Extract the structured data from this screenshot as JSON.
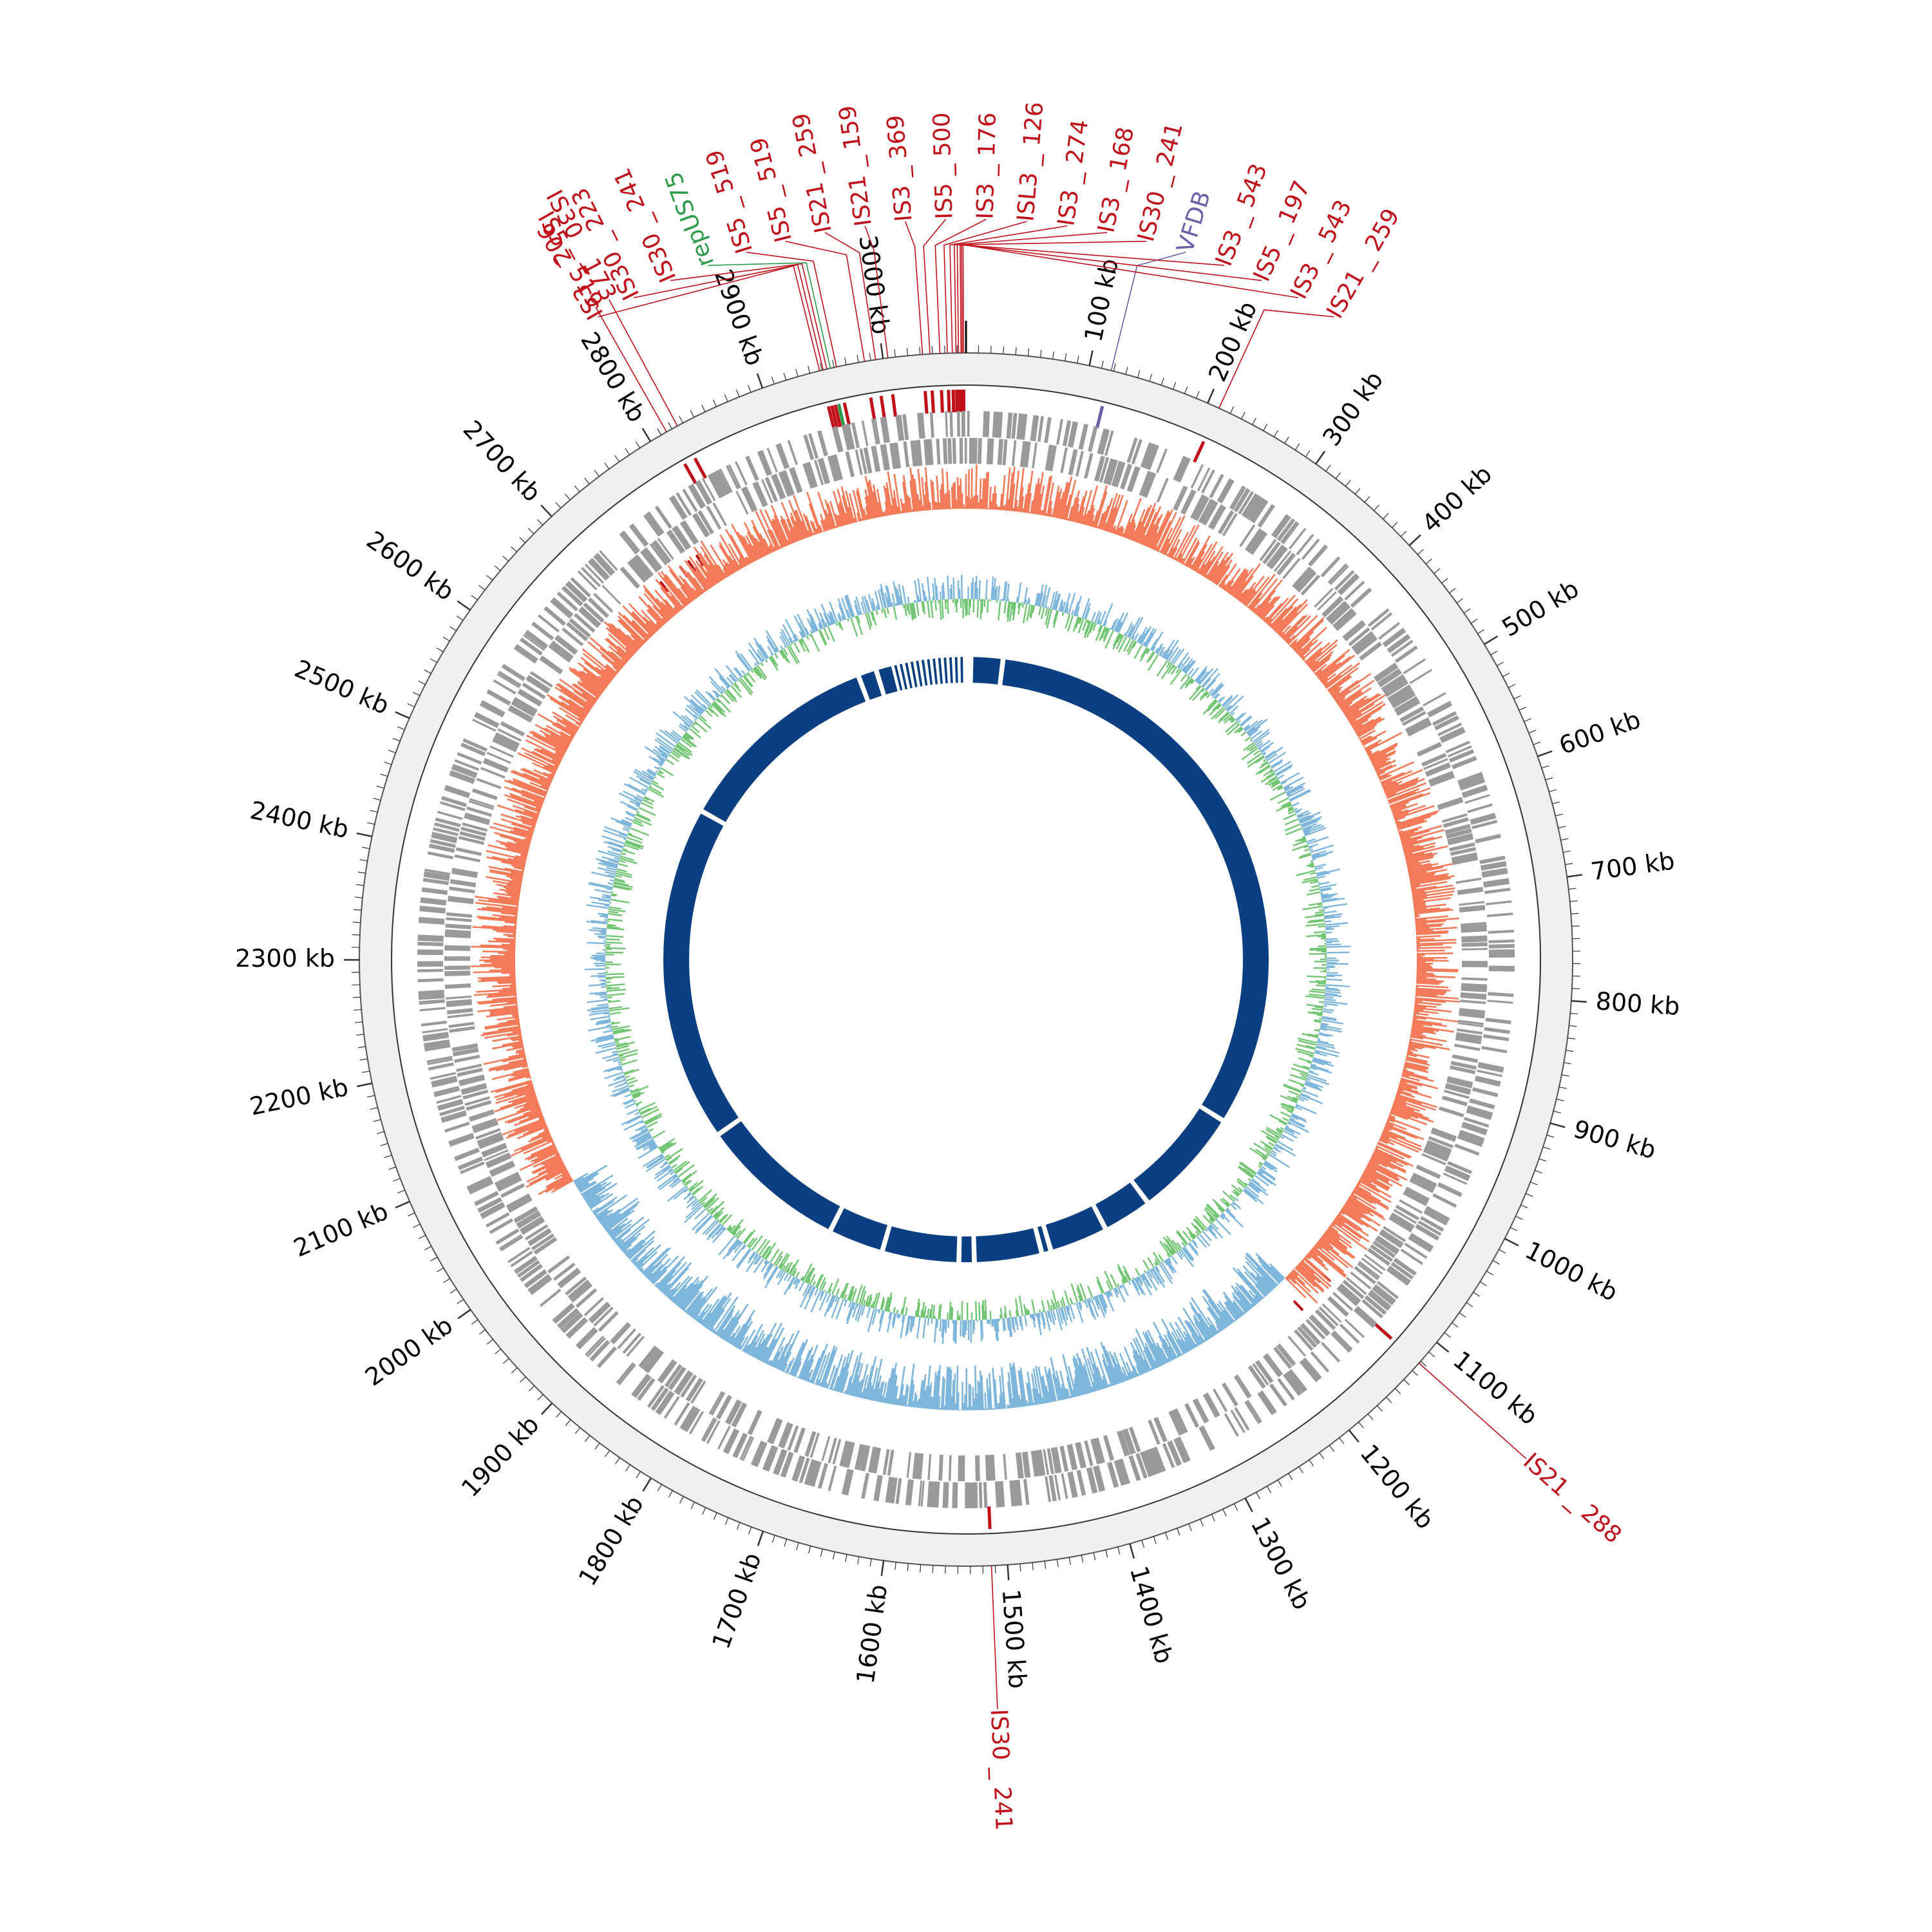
{
  "chart_data": {
    "type": "circular-genome-map",
    "genome_length_kb": 3067,
    "tick_unit": "kb",
    "tick_labels": [
      "100 kb",
      "200 kb",
      "300 kb",
      "400 kb",
      "500 kb",
      "600 kb",
      "700 kb",
      "800 kb",
      "900 kb",
      "1000 kb",
      "1100 kb",
      "1200 kb",
      "1300 kb",
      "1400 kb",
      "1500 kb",
      "1600 kb",
      "1700 kb",
      "1800 kb",
      "1900 kb",
      "2000 kb",
      "2100 kb",
      "2200 kb",
      "2300 kb",
      "2400 kb",
      "2500 kb",
      "2600 kb",
      "2700 kb",
      "2800 kb",
      "2900 kb",
      "3000 kb"
    ],
    "tick_positions_kb": [
      100,
      200,
      300,
      400,
      500,
      600,
      700,
      800,
      900,
      1000,
      1100,
      1200,
      1300,
      1400,
      1500,
      1600,
      1700,
      1800,
      1900,
      2000,
      2100,
      2200,
      2300,
      2400,
      2500,
      2600,
      2700,
      2800,
      2900,
      3000
    ],
    "feature_labels": [
      {
        "label": "IS5 _ 519",
        "kb": 2815,
        "color": "#c0101a"
      },
      {
        "label": "IS30 _ 173",
        "kb": 2825,
        "color": "#c0101a"
      },
      {
        "label": "IS3 _ 206",
        "kb": 2948,
        "color": "#c0101a"
      },
      {
        "label": "IS30 _ 223",
        "kb": 2951,
        "color": "#c0101a"
      },
      {
        "label": "IS30 _ 241",
        "kb": 2954,
        "color": "#c0101a"
      },
      {
        "label": "repUS75",
        "kb": 2957,
        "color": "#2e9b4a"
      },
      {
        "label": "IS5 _ 519",
        "kb": 2962,
        "color": "#c0101a"
      },
      {
        "label": "IS5 _ 519",
        "kb": 2985,
        "color": "#c0101a"
      },
      {
        "label": "IS21 _ 259",
        "kb": 2994,
        "color": "#c0101a"
      },
      {
        "label": "IS21 _ 159",
        "kb": 3004,
        "color": "#c0101a"
      },
      {
        "label": "IS3 _ 369",
        "kb": 3032,
        "color": "#c0101a"
      },
      {
        "label": "IS5 _ 500",
        "kb": 3038,
        "color": "#c0101a"
      },
      {
        "label": "IS3 _ 176",
        "kb": 3046,
        "color": "#c0101a"
      },
      {
        "label": "ISL3 _ 126",
        "kb": 3052,
        "color": "#c0101a"
      },
      {
        "label": "IS3 _ 274",
        "kb": 3056,
        "color": "#c0101a"
      },
      {
        "label": "IS3 _ 168",
        "kb": 3059,
        "color": "#c0101a"
      },
      {
        "label": "IS30 _ 241",
        "kb": 3061,
        "color": "#c0101a"
      },
      {
        "label": "VFDB",
        "kb": 118,
        "color": "#6a5ea8"
      },
      {
        "label": "IS3 _ 543",
        "kb": 3063,
        "color": "#c0101a"
      },
      {
        "label": "IS5 _ 197",
        "kb": 3064,
        "color": "#c0101a"
      },
      {
        "label": "IS3 _ 543",
        "kb": 3065,
        "color": "#c0101a"
      },
      {
        "label": "IS21 _ 259",
        "kb": 210,
        "color": "#c0101a"
      },
      {
        "label": "IS21 _ 288",
        "kb": 1122,
        "color": "#c0101a"
      },
      {
        "label": "IS30 _ 241",
        "kb": 1513,
        "color": "#c0101a"
      }
    ],
    "tracks": [
      {
        "name": "mobile elements",
        "color": "#c0101a"
      },
      {
        "name": "CDS forward/reverse",
        "color": "#9a9a9a"
      },
      {
        "name": "GC skew positive",
        "color": "#f47b5a"
      },
      {
        "name": "GC skew negative",
        "color": "#7fb6dc"
      },
      {
        "name": "GC content",
        "color": "#72c572"
      },
      {
        "name": "alignment blocks",
        "color": "#0b3f82"
      }
    ],
    "alignment_gaps_kb": [
      0,
      2,
      60,
      1040,
      1220,
      1300,
      1395,
      1410,
      1520,
      1545,
      1670,
      1760,
      2000,
      2550,
      2890,
      2920
    ]
  },
  "colors": {
    "insertion_sequence": "#c0101a",
    "replicon": "#2e9b4a",
    "virulence": "#6a5ea8",
    "cds": "#9a9a9a",
    "skew_pos": "#f47b5a",
    "skew_neg": "#7fb6dc",
    "gc": "#72c572",
    "alignment": "#0b3f82"
  }
}
